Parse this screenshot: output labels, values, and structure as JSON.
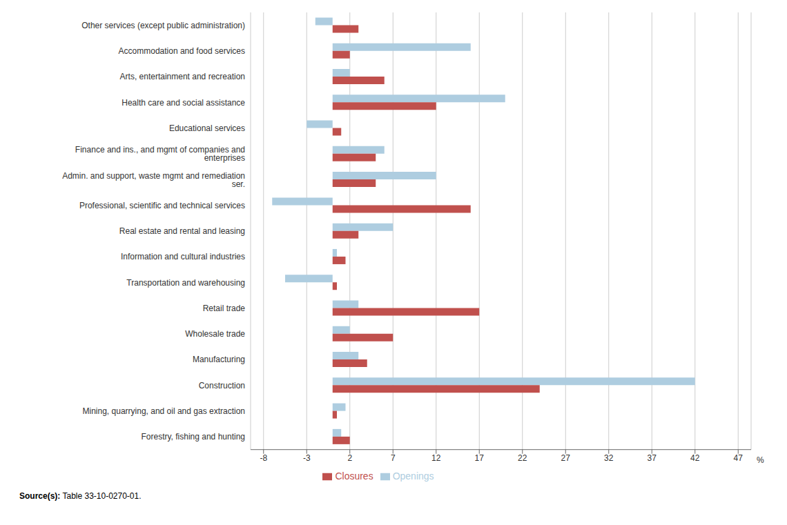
{
  "chart_data": {
    "type": "bar",
    "orientation": "horizontal",
    "categories": [
      "Other services (except public administration)",
      "Accommodation and food services",
      "Arts, entertainment and recreation",
      "Health care and social assistance",
      "Educational services",
      "Finance and ins., and mgmt of companies and enterprises",
      "Admin. and support, waste mgmt and remediation ser.",
      "Professional, scientific and technical services",
      "Real estate and rental and leasing",
      "Information and cultural industries",
      "Transportation and warehousing",
      "Retail trade",
      "Wholesale trade",
      "Manufacturing",
      "Construction",
      "Mining, quarrying, and oil and gas extraction",
      "Forestry, fishing and hunting"
    ],
    "series": [
      {
        "name": "Openings",
        "color": "#aecde0",
        "values": [
          -2.0,
          16.0,
          2.0,
          20.0,
          -3.0,
          6.0,
          12.0,
          -7.0,
          7.0,
          0.5,
          -5.5,
          3.0,
          2.0,
          3.0,
          42.0,
          1.5,
          1.0
        ]
      },
      {
        "name": "Closures",
        "color": "#c0504d",
        "values": [
          3.0,
          2.0,
          6.0,
          12.0,
          1.0,
          5.0,
          5.0,
          16.0,
          3.0,
          1.5,
          0.5,
          17.0,
          7.0,
          4.0,
          24.0,
          0.5,
          2.0
        ]
      }
    ],
    "xlim": [
      -9.5,
      48.5
    ],
    "xticks": [
      -8,
      -3,
      2,
      7,
      12,
      17,
      22,
      27,
      32,
      37,
      42,
      47
    ],
    "grid": true,
    "legend": "bottom",
    "annotations": [
      "%"
    ],
    "source": [
      "Source(s):",
      "Table 33-10-0270-01."
    ]
  }
}
